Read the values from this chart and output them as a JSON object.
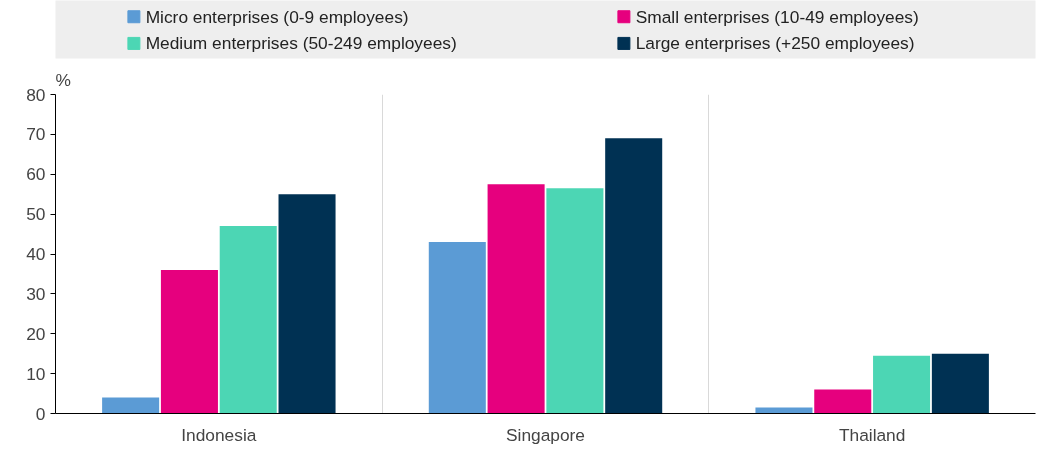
{
  "chart_data": {
    "type": "bar",
    "ylabel": "%",
    "categories": [
      "Indonesia",
      "Singapore",
      "Thailand"
    ],
    "series": [
      {
        "name": "Micro enterprises (0-9 employees)",
        "color": "#5b9bd5",
        "values": [
          4,
          43,
          1.5
        ]
      },
      {
        "name": "Small enterprises (10-49 employees)",
        "color": "#e6007e",
        "values": [
          36,
          57.5,
          6
        ]
      },
      {
        "name": "Medium enterprises (50-249 employees)",
        "color": "#4cd6b4",
        "values": [
          47,
          56.5,
          14.5
        ]
      },
      {
        "name": "Large enterprises (+250 employees)",
        "color": "#003153",
        "values": [
          55,
          69,
          15
        ]
      }
    ],
    "ylim": [
      0,
      80
    ],
    "yticks": [
      0,
      10,
      20,
      30,
      40,
      50,
      60,
      70,
      80
    ],
    "grid": "x",
    "legend": "top"
  }
}
